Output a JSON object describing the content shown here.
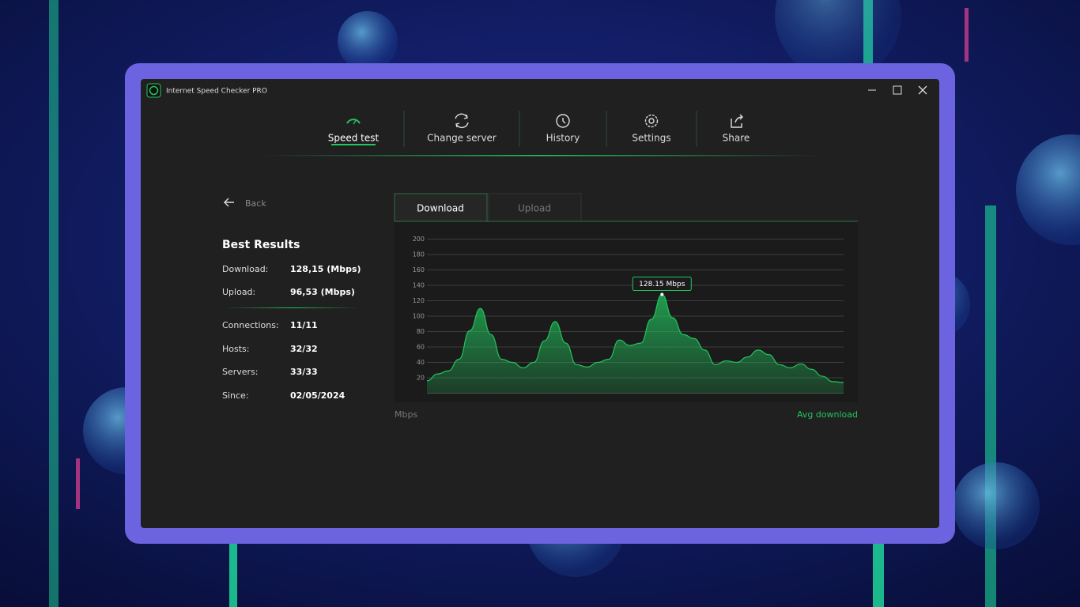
{
  "window": {
    "title": "Internet Speed Checker PRO"
  },
  "nav": [
    "Speed test",
    "Change server",
    "History",
    "Settings",
    "Share"
  ],
  "back": "Back",
  "best_results": {
    "title": "Best Results",
    "rows": [
      {
        "label": "Download:",
        "value": "128,15 (Mbps)"
      },
      {
        "label": "Upload:",
        "value": "96,53 (Mbps)"
      },
      {
        "label": "Connections:",
        "value": "11/11"
      },
      {
        "label": "Hosts:",
        "value": "32/32"
      },
      {
        "label": "Servers:",
        "value": "33/33"
      },
      {
        "label": "Since:",
        "value": "02/05/2024"
      }
    ]
  },
  "tabs": [
    "Download",
    "Upload"
  ],
  "chart_data": {
    "type": "area",
    "y_label": "Mbps",
    "categories": [
      null,
      null,
      null,
      null,
      null,
      null,
      null,
      null,
      null,
      null,
      null,
      null,
      null,
      null,
      null,
      null,
      null,
      null,
      null,
      null,
      null,
      null,
      null,
      null,
      null,
      null,
      null,
      null,
      null,
      null,
      null,
      null,
      null,
      null,
      null,
      null,
      null,
      null,
      null,
      null
    ],
    "series": [
      {
        "name": "Avg download",
        "color": "#22c55e",
        "values": [
          16,
          25,
          29,
          44,
          81,
          110,
          76,
          44,
          40,
          33,
          40,
          68,
          93,
          65,
          37,
          34,
          40,
          44,
          69,
          62,
          65,
          96,
          128.15,
          98,
          76,
          71,
          56,
          37,
          42,
          40,
          47,
          56,
          50,
          37,
          33,
          38,
          31,
          22,
          15,
          14
        ],
        "value_labels": [
          null,
          null,
          null,
          null,
          null,
          null,
          null,
          null,
          null,
          null,
          null,
          null,
          null,
          null,
          null,
          null,
          null,
          null,
          null,
          null,
          null,
          null,
          "128.15 Mbps",
          null,
          null,
          null,
          null,
          null,
          null,
          null,
          null,
          null,
          null,
          null,
          null,
          null,
          null,
          null,
          null,
          null
        ]
      }
    ],
    "ylim": [
      0,
      200
    ],
    "yticks": [
      20,
      40,
      60,
      80,
      100,
      120,
      140,
      160,
      180,
      200
    ],
    "grid": true
  }
}
